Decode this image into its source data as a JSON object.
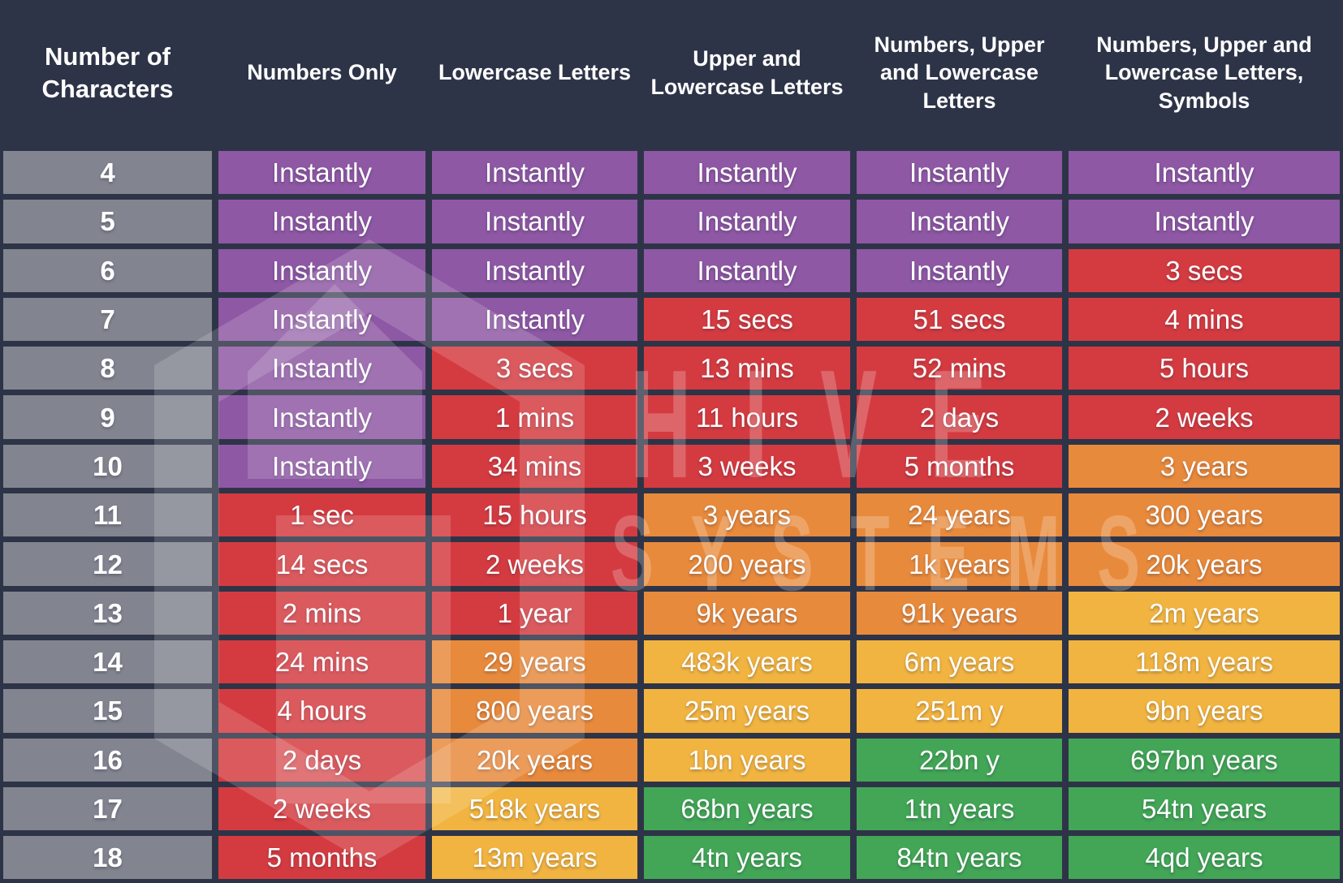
{
  "watermark": {
    "line1": "HIVE",
    "line2": "SYSTEMS",
    "logo": "hive-hexagon-logo"
  },
  "chart_data": {
    "type": "table",
    "columns": [
      "Number of Characters",
      "Numbers Only",
      "Lowercase Letters",
      "Upper and Lowercase Letters",
      "Numbers, Upper and Lowercase Letters",
      "Numbers, Upper and Lowercase Letters, Symbols"
    ],
    "rows": [
      {
        "characters": "4",
        "values": [
          "Instantly",
          "Instantly",
          "Instantly",
          "Instantly",
          "Instantly"
        ],
        "colors": [
          "purple",
          "purple",
          "purple",
          "purple",
          "purple"
        ]
      },
      {
        "characters": "5",
        "values": [
          "Instantly",
          "Instantly",
          "Instantly",
          "Instantly",
          "Instantly"
        ],
        "colors": [
          "purple",
          "purple",
          "purple",
          "purple",
          "purple"
        ]
      },
      {
        "characters": "6",
        "values": [
          "Instantly",
          "Instantly",
          "Instantly",
          "Instantly",
          "3 secs"
        ],
        "colors": [
          "purple",
          "purple",
          "purple",
          "purple",
          "red"
        ]
      },
      {
        "characters": "7",
        "values": [
          "Instantly",
          "Instantly",
          "15 secs",
          "51 secs",
          "4 mins"
        ],
        "colors": [
          "purple",
          "purple",
          "red",
          "red",
          "red"
        ]
      },
      {
        "characters": "8",
        "values": [
          "Instantly",
          "3 secs",
          "13 mins",
          "52 mins",
          "5 hours"
        ],
        "colors": [
          "purple",
          "red",
          "red",
          "red",
          "red"
        ]
      },
      {
        "characters": "9",
        "values": [
          "Instantly",
          "1 mins",
          "11 hours",
          "2 days",
          "2 weeks"
        ],
        "colors": [
          "purple",
          "red",
          "red",
          "red",
          "red"
        ]
      },
      {
        "characters": "10",
        "values": [
          "Instantly",
          "34 mins",
          "3 weeks",
          "5 months",
          "3 years"
        ],
        "colors": [
          "purple",
          "red",
          "red",
          "red",
          "orange"
        ]
      },
      {
        "characters": "11",
        "values": [
          "1 sec",
          "15 hours",
          "3 years",
          "24 years",
          "300 years"
        ],
        "colors": [
          "red",
          "red",
          "orange",
          "orange",
          "orange"
        ]
      },
      {
        "characters": "12",
        "values": [
          "14 secs",
          "2 weeks",
          "200 years",
          "1k years",
          "20k years"
        ],
        "colors": [
          "red",
          "red",
          "orange",
          "orange",
          "orange"
        ]
      },
      {
        "characters": "13",
        "values": [
          "2 mins",
          "1 year",
          "9k years",
          "91k years",
          "2m years"
        ],
        "colors": [
          "red",
          "red",
          "orange",
          "orange",
          "yellow"
        ]
      },
      {
        "characters": "14",
        "values": [
          "24 mins",
          "29 years",
          "483k years",
          "6m years",
          "118m years"
        ],
        "colors": [
          "red",
          "orange",
          "yellow",
          "yellow",
          "yellow"
        ]
      },
      {
        "characters": "15",
        "values": [
          "4 hours",
          "800 years",
          "25m years",
          "251m y",
          "9bn years"
        ],
        "colors": [
          "red",
          "orange",
          "yellow",
          "yellow",
          "yellow"
        ]
      },
      {
        "characters": "16",
        "values": [
          "2 days",
          "20k years",
          "1bn years",
          "22bn y",
          "697bn years"
        ],
        "colors": [
          "red",
          "orange",
          "yellow",
          "green",
          "green"
        ]
      },
      {
        "characters": "17",
        "values": [
          "2 weeks",
          "518k years",
          "68bn years",
          "1tn years",
          "54tn years"
        ],
        "colors": [
          "red",
          "yellow",
          "green",
          "green",
          "green"
        ]
      },
      {
        "characters": "18",
        "values": [
          "5 months",
          "13m years",
          "4tn years",
          "84tn years",
          "4qd years"
        ],
        "colors": [
          "red",
          "yellow",
          "green",
          "green",
          "green"
        ]
      }
    ],
    "color_legend": {
      "purple": "#8e58a4",
      "red": "#d43b40",
      "orange": "#e88a3c",
      "yellow": "#f2b440",
      "green": "#42a656",
      "row_header_gray": "#82858f",
      "background": "#2e3447"
    }
  }
}
